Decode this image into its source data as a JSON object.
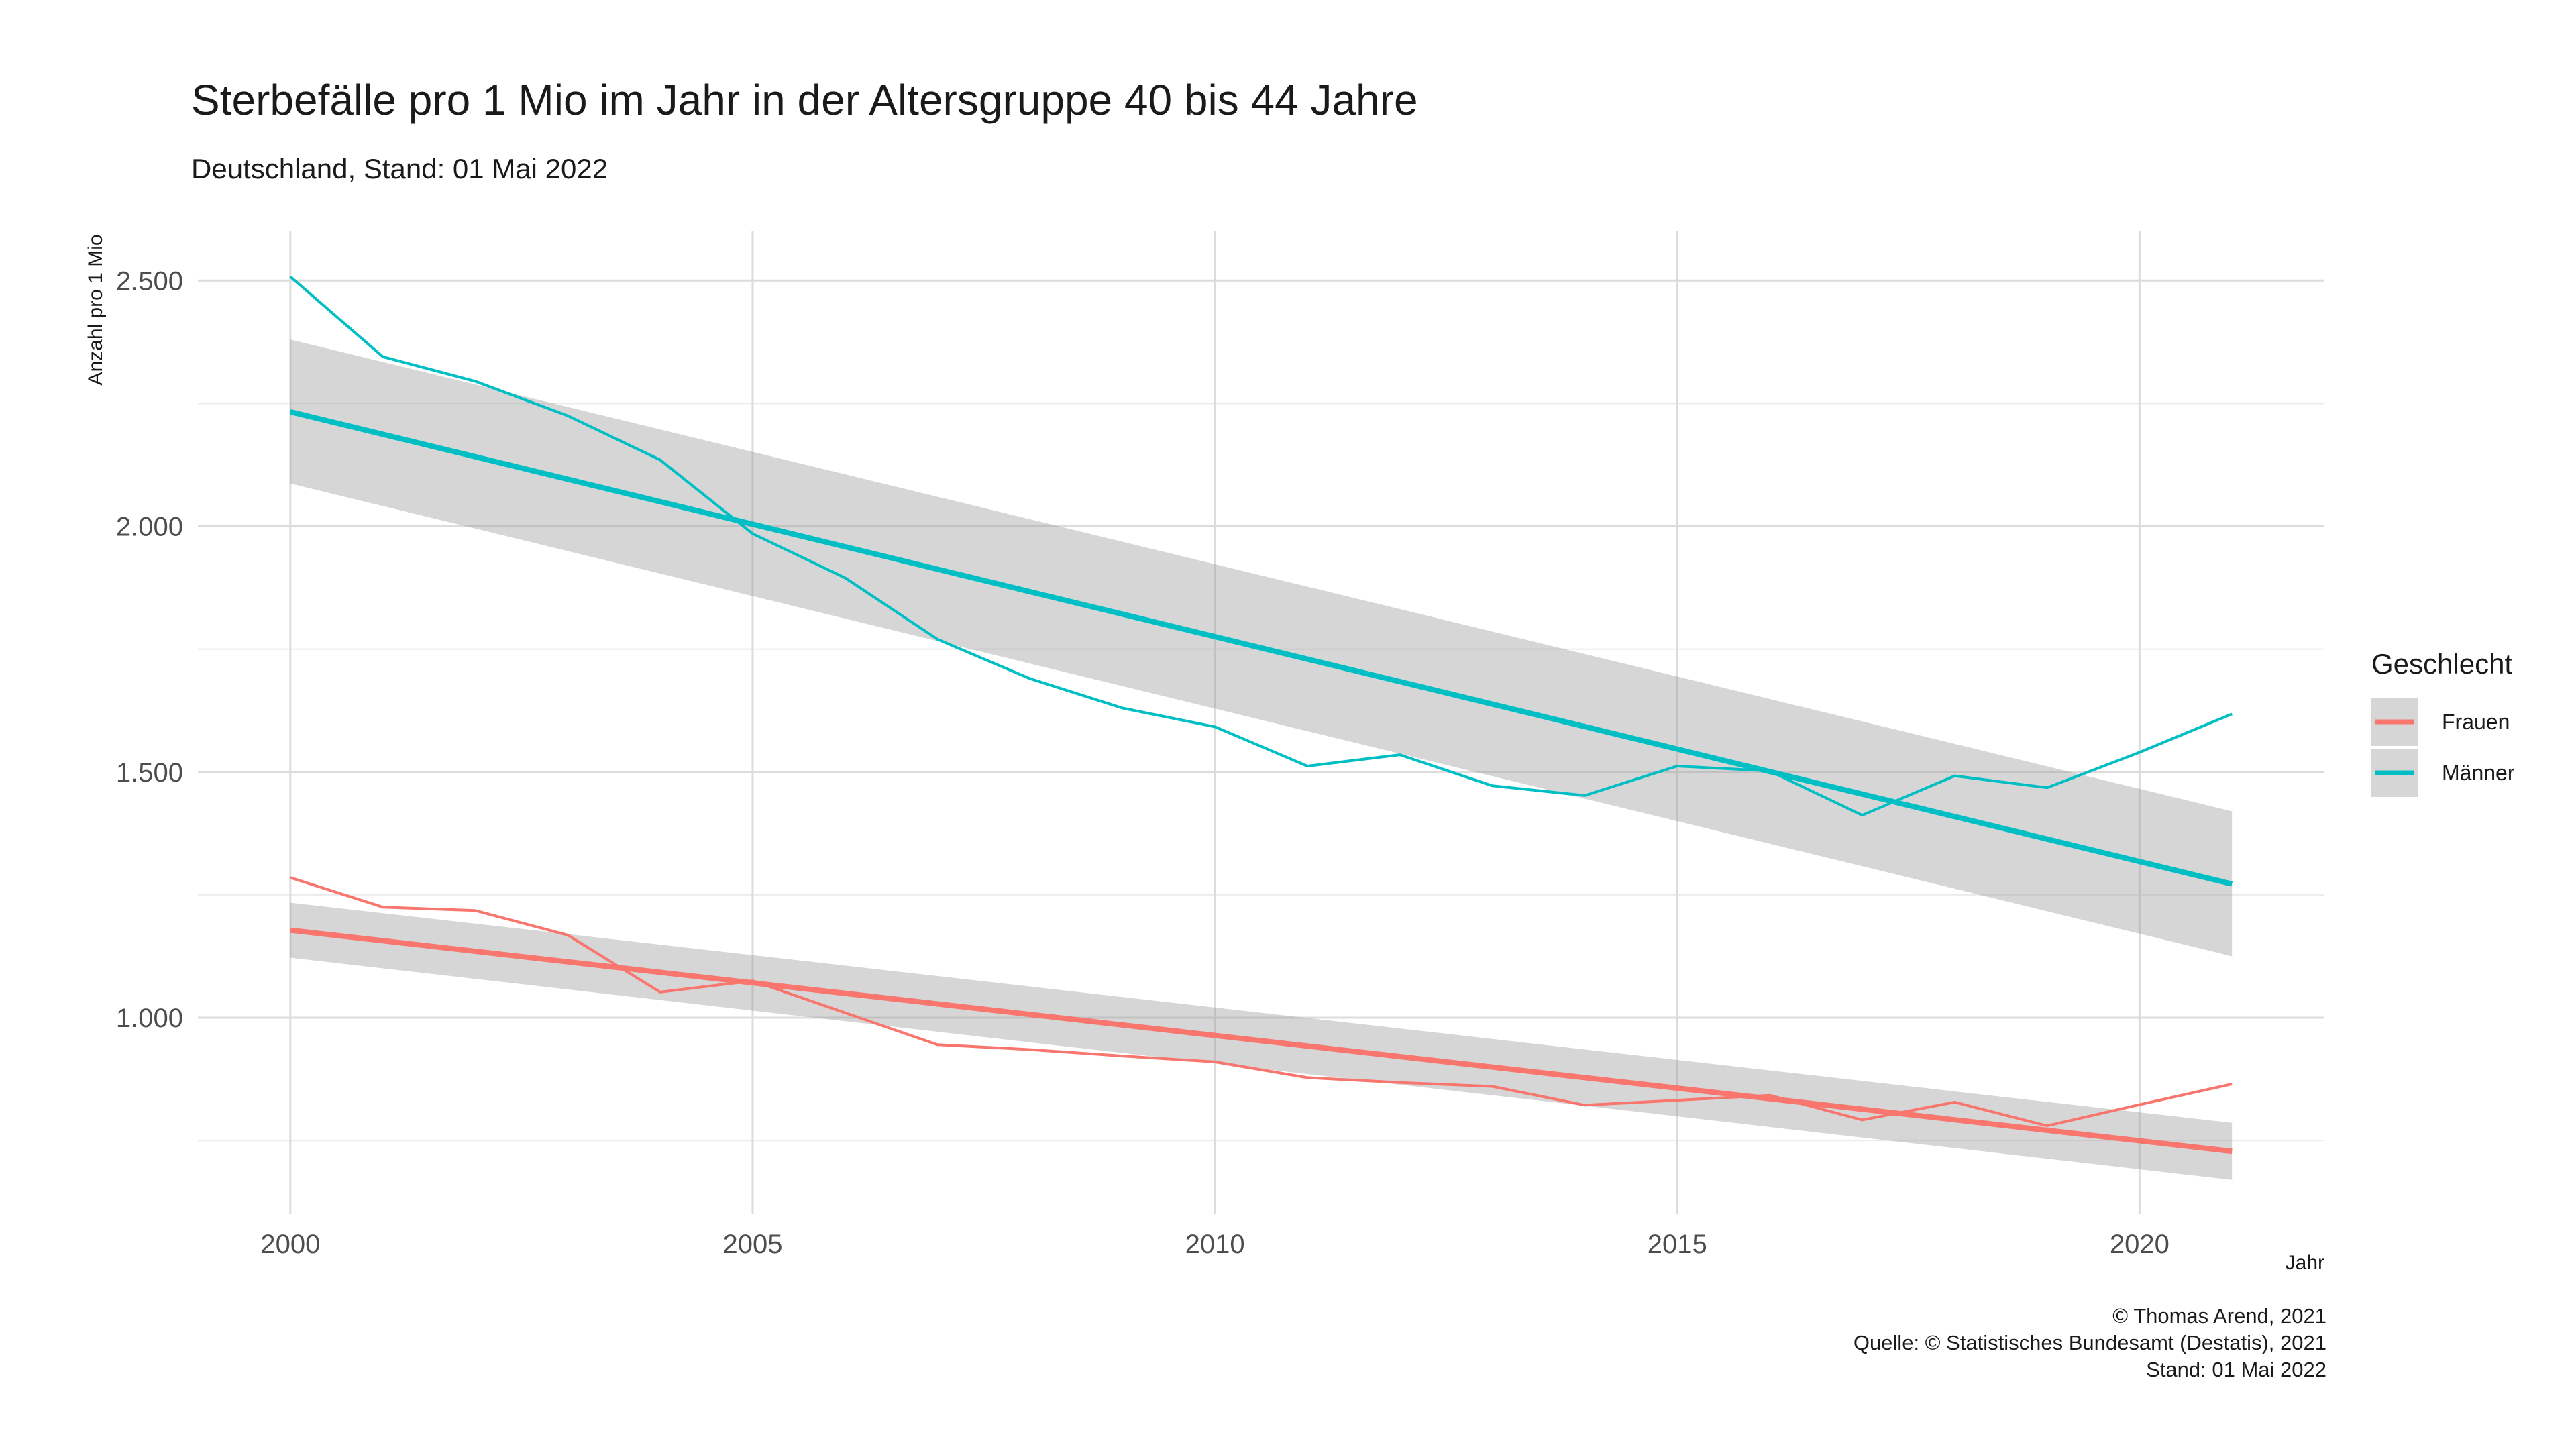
{
  "chart_data": {
    "type": "line",
    "title": "Sterbefälle pro 1 Mio im Jahr in der Altersgruppe 40 bis 44 Jahre",
    "subtitle": "Deutschland, Stand: 01 Mai 2022",
    "xlabel": "Jahr",
    "ylabel": "Anzahl pro 1 Mio",
    "xlim": [
      1999,
      2022
    ],
    "ylim": [
      600,
      2600
    ],
    "x_ticks": [
      2000,
      2005,
      2010,
      2015,
      2020
    ],
    "x_tick_labels": [
      "2000",
      "2005",
      "2010",
      "2015",
      "2020"
    ],
    "y_ticks": [
      1000,
      1500,
      2000,
      2500
    ],
    "y_tick_labels": [
      "1.000",
      "1.500",
      "2.000",
      "2.500"
    ],
    "y_minor_ticks": [
      750,
      1250,
      1750,
      2250
    ],
    "grid": true,
    "legend": {
      "title": "Geschlecht",
      "position": "right"
    },
    "x": [
      2000,
      2001,
      2002,
      2003,
      2004,
      2005,
      2006,
      2007,
      2008,
      2009,
      2010,
      2011,
      2012,
      2013,
      2014,
      2015,
      2016,
      2017,
      2018,
      2019,
      2020,
      2021
    ],
    "series": [
      {
        "name": "Frauen",
        "color": "#F8766D",
        "values": [
          1285,
          1225,
          1218,
          1168,
          1052,
          1075,
          1010,
          945,
          935,
          922,
          910,
          878,
          868,
          860,
          822,
          832,
          842,
          792,
          828,
          780,
          823,
          865
        ],
        "trend": {
          "start": 1178,
          "end": 728,
          "ci_start": [
            1122,
            1234
          ],
          "ci_end": [
            670,
            786
          ]
        }
      },
      {
        "name": "Männer",
        "color": "#00BFC4",
        "values": [
          2508,
          2345,
          2295,
          2225,
          2135,
          1985,
          1895,
          1770,
          1690,
          1630,
          1592,
          1512,
          1535,
          1472,
          1452,
          1512,
          1502,
          1412,
          1492,
          1468,
          1540,
          1618
        ],
        "trend": {
          "start": 2233,
          "end": 1272,
          "ci_start": [
            2087,
            2380
          ],
          "ci_end": [
            1125,
            1420
          ]
        }
      }
    ]
  },
  "caption": {
    "line1": "© Thomas Arend, 2021",
    "line2": "Quelle: © Statistisches Bundesamt (Destatis), 2021",
    "line3": "Stand: 01 Mai 2022"
  }
}
